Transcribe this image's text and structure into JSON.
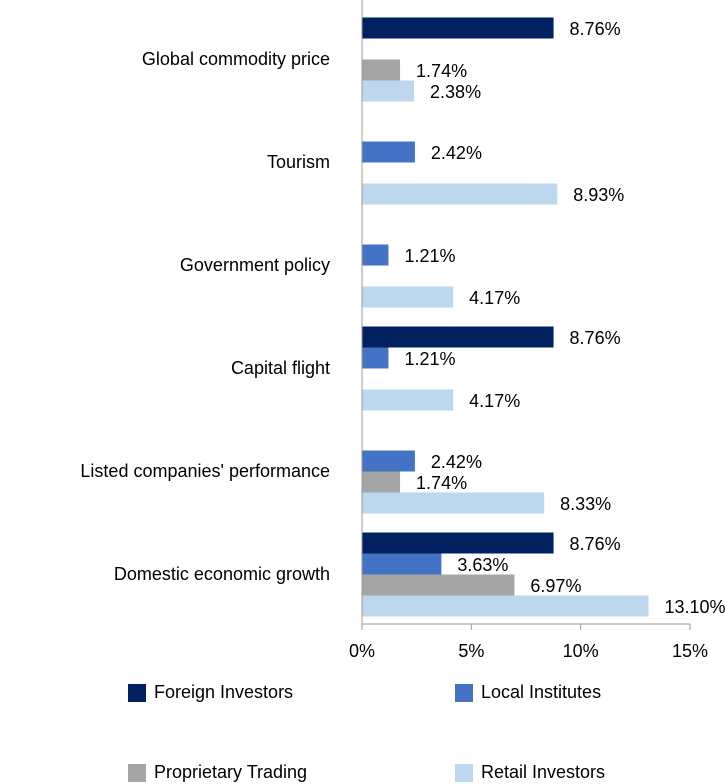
{
  "chart_data": {
    "type": "bar",
    "orientation": "horizontal",
    "categories": [
      "Global commodity price",
      "Tourism",
      "Government policy",
      "Capital flight",
      "Listed companies' performance",
      "Domestic economic growth"
    ],
    "series": [
      {
        "name": "Foreign Investors",
        "color": "#002060",
        "values": [
          8.76,
          null,
          null,
          8.76,
          null,
          8.76
        ],
        "value_labels": [
          "8.76%",
          null,
          null,
          "8.76%",
          null,
          "8.76%"
        ]
      },
      {
        "name": "Local Institutes",
        "color": "#4472c4",
        "values": [
          null,
          2.42,
          1.21,
          1.21,
          2.42,
          3.63
        ],
        "value_labels": [
          null,
          "2.42%",
          "1.21%",
          "1.21%",
          "2.42%",
          "3.63%"
        ]
      },
      {
        "name": "Proprietary Trading",
        "color": "#a5a5a5",
        "values": [
          1.74,
          null,
          null,
          null,
          1.74,
          6.97
        ],
        "value_labels": [
          "1.74%",
          null,
          null,
          null,
          "1.74%",
          "6.97%"
        ]
      },
      {
        "name": "Retail Investors",
        "color": "#bdd7ee",
        "values": [
          2.38,
          8.93,
          4.17,
          4.17,
          8.33,
          13.1
        ],
        "value_labels": [
          "2.38%",
          "8.93%",
          "4.17%",
          "4.17%",
          "8.33%",
          "13.10%"
        ]
      }
    ],
    "xlim": [
      0,
      15
    ],
    "xticks": [
      {
        "value": 0,
        "label": "0%"
      },
      {
        "value": 5,
        "label": "5%"
      },
      {
        "value": 10,
        "label": "10%"
      },
      {
        "value": 15,
        "label": "15%"
      }
    ],
    "legend": "bottom"
  }
}
